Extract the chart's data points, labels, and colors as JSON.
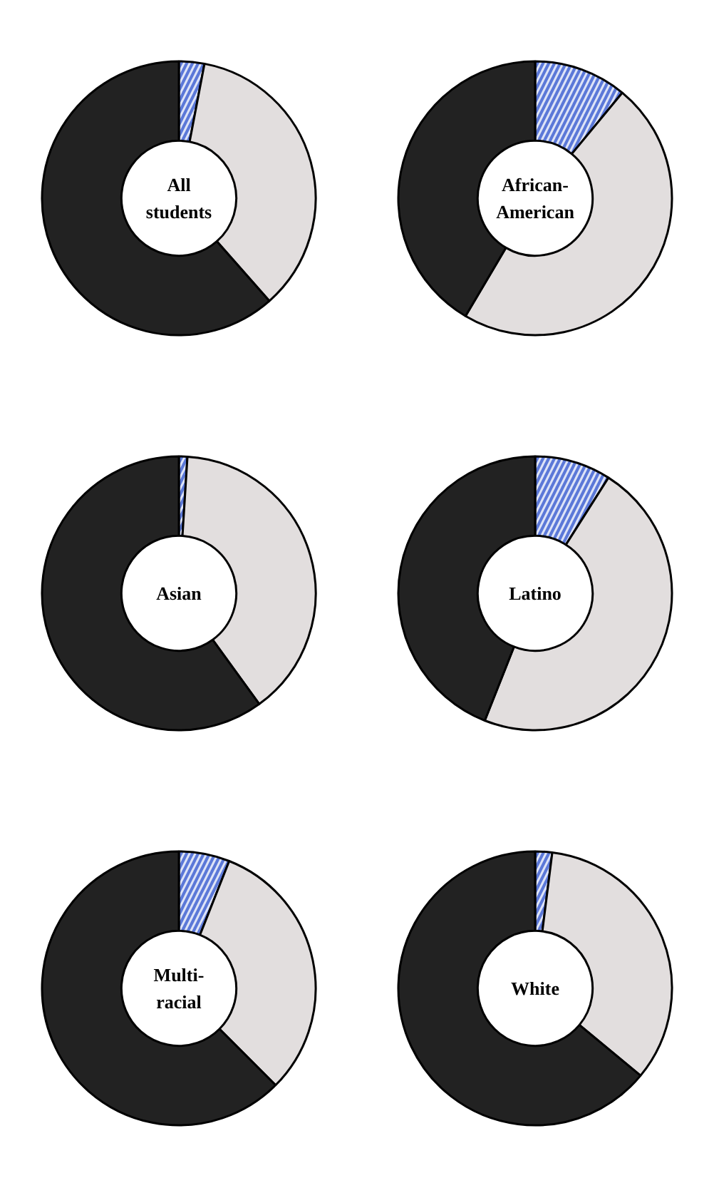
{
  "chart_data": [
    {
      "type": "donut",
      "title": "All students",
      "categories": [
        null,
        null,
        null
      ],
      "values": [
        3,
        35.5,
        61.5
      ],
      "colors": [
        "#5b78d8",
        "#e2dede",
        "#222222"
      ]
    },
    {
      "type": "donut",
      "title": "African-American",
      "categories": [
        null,
        null,
        null
      ],
      "values": [
        11,
        47.5,
        41.5
      ],
      "colors": [
        "#5b78d8",
        "#e2dede",
        "#222222"
      ]
    },
    {
      "type": "donut",
      "title": "Asian",
      "categories": [
        null,
        null,
        null
      ],
      "values": [
        1,
        39,
        60
      ],
      "colors": [
        "#5b78d8",
        "#e2dede",
        "#222222"
      ]
    },
    {
      "type": "donut",
      "title": "Latino",
      "categories": [
        null,
        null,
        null
      ],
      "values": [
        9,
        47,
        44
      ],
      "colors": [
        "#5b78d8",
        "#e2dede",
        "#222222"
      ]
    },
    {
      "type": "donut",
      "title": "Multi-racial",
      "categories": [
        null,
        null,
        null
      ],
      "values": [
        6,
        31.5,
        62.5
      ],
      "colors": [
        "#5b78d8",
        "#e2dede",
        "#222222"
      ]
    },
    {
      "type": "donut",
      "title": "White",
      "categories": [
        null,
        null,
        null
      ],
      "values": [
        2,
        34,
        64
      ],
      "colors": [
        "#5b78d8",
        "#e2dede",
        "#222222"
      ]
    }
  ]
}
